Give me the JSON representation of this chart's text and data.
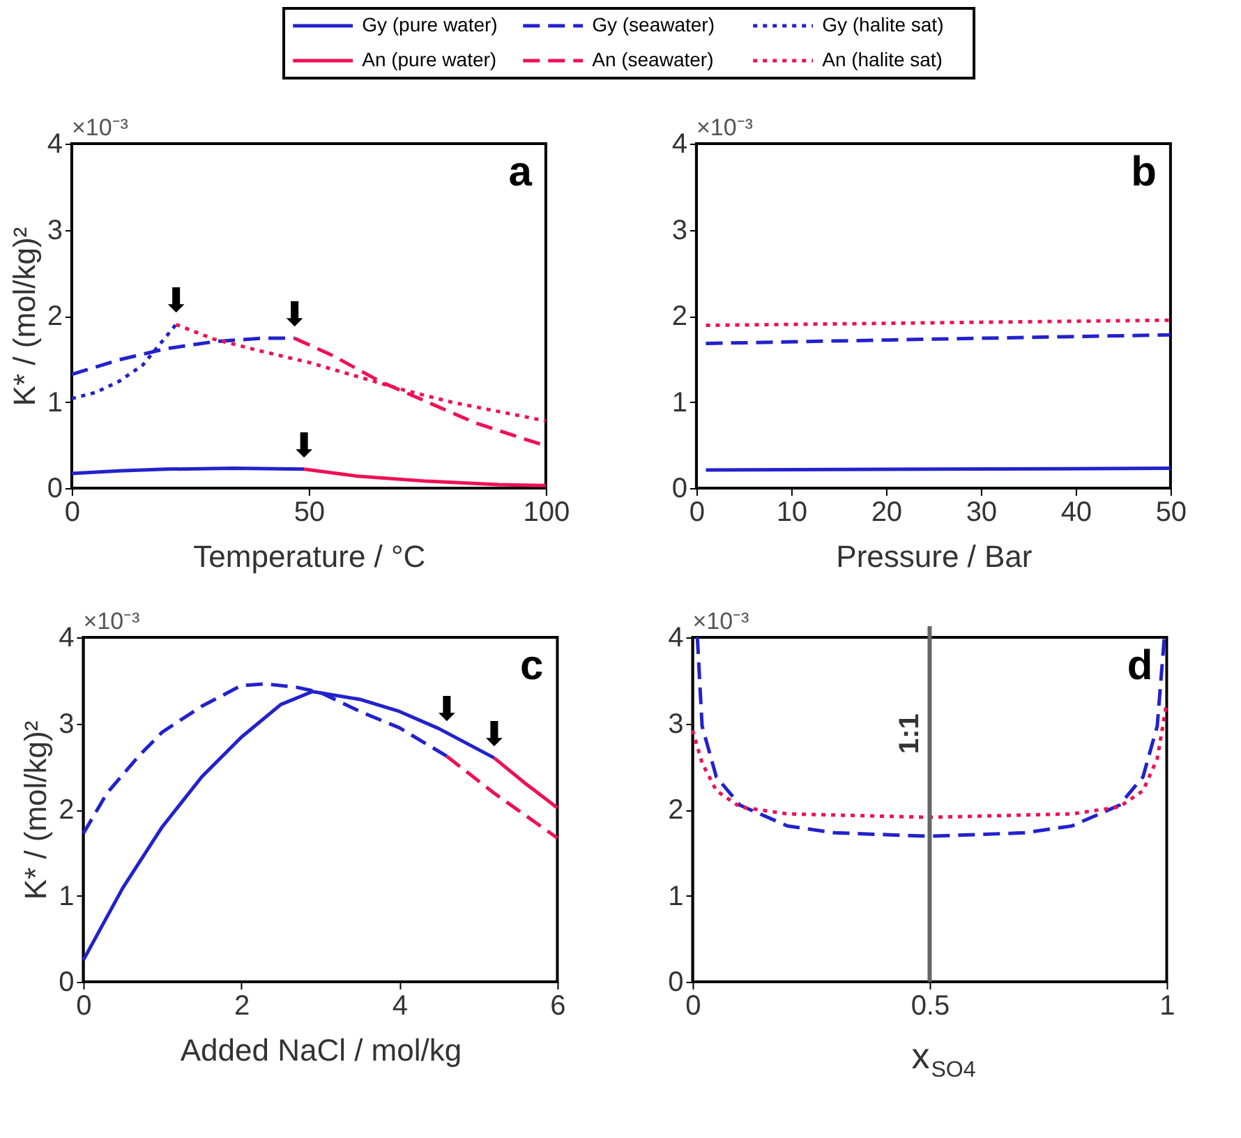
{
  "chart_data": [
    {
      "type": "line",
      "xlabel": "Temperature / °C",
      "ylabel": "K* / (mol/kg)²",
      "xlim": [
        0,
        100
      ],
      "ylim": [
        0,
        4
      ],
      "xticks": [
        0,
        50,
        100
      ],
      "yticks": [
        0,
        1,
        2,
        3,
        4
      ],
      "legend": "top",
      "annotations": [
        "×10⁻³",
        "a",
        {
          "text": "⬇",
          "x": 22,
          "y": 1.9
        },
        {
          "text": "⬇",
          "x": 47,
          "y": 1.74
        },
        {
          "text": "⬇",
          "x": 49,
          "y": 0.22
        }
      ],
      "series": [
        {
          "name": "Gy (pure water)",
          "color": "#2222cc",
          "line_style": "solid",
          "x": [
            0,
            10,
            20,
            34,
            49
          ],
          "values": [
            0.17,
            0.2,
            0.22,
            0.23,
            0.22
          ]
        },
        {
          "name": "An (pure water)",
          "color": "#ee1155",
          "line_style": "solid",
          "x": [
            49,
            60,
            75,
            90,
            100
          ],
          "values": [
            0.22,
            0.14,
            0.08,
            0.04,
            0.03
          ]
        },
        {
          "name": "Gy (seawater)",
          "color": "#2222cc",
          "line_style": "dashed",
          "x": [
            0,
            10,
            20,
            30,
            40,
            47
          ],
          "values": [
            1.32,
            1.49,
            1.62,
            1.7,
            1.74,
            1.74
          ]
        },
        {
          "name": "An (seawater)",
          "color": "#ee1155",
          "line_style": "dashed",
          "x": [
            47,
            55,
            65,
            75,
            85,
            100
          ],
          "values": [
            1.74,
            1.54,
            1.24,
            1.0,
            0.76,
            0.49
          ]
        },
        {
          "name": "Gy (halite sat)",
          "color": "#2222cc",
          "line_style": "dotted",
          "x": [
            0,
            5,
            10,
            15,
            22
          ],
          "values": [
            1.04,
            1.11,
            1.24,
            1.43,
            1.9
          ]
        },
        {
          "name": "An (halite sat)",
          "color": "#ee1155",
          "line_style": "dotted",
          "x": [
            22,
            30,
            40,
            50,
            60,
            70,
            80,
            90,
            100
          ],
          "values": [
            1.9,
            1.73,
            1.59,
            1.46,
            1.3,
            1.14,
            1.0,
            0.89,
            0.78
          ]
        }
      ]
    },
    {
      "type": "line",
      "xlabel": "Pressure / Bar",
      "xlim": [
        0,
        50
      ],
      "ylim": [
        0,
        4
      ],
      "xticks": [
        0,
        10,
        20,
        30,
        40,
        50
      ],
      "yticks": [
        0,
        1,
        2,
        3,
        4
      ],
      "annotations": [
        "×10⁻³",
        "b"
      ],
      "series": [
        {
          "color": "#2222cc",
          "line_style": "solid",
          "x": [
            1,
            25,
            50
          ],
          "values": [
            0.21,
            0.22,
            0.23
          ]
        },
        {
          "color": "#2222cc",
          "line_style": "dashed",
          "x": [
            1,
            25,
            50
          ],
          "values": [
            1.68,
            1.73,
            1.78
          ]
        },
        {
          "color": "#ee1155",
          "line_style": "dotted",
          "x": [
            1,
            25,
            50
          ],
          "values": [
            1.89,
            1.92,
            1.95
          ]
        }
      ]
    },
    {
      "type": "line",
      "xlabel": "Added NaCl / mol/kg",
      "ylabel": "K* / (mol/kg)²",
      "xlim": [
        0,
        6
      ],
      "ylim": [
        0,
        4
      ],
      "xticks": [
        0,
        2,
        4,
        6
      ],
      "yticks": [
        0,
        1,
        2,
        3,
        4
      ],
      "annotations": [
        "×10⁻³",
        "c",
        {
          "text": "⬇",
          "x": 4.6,
          "y": 2.89
        },
        {
          "text": "⬇",
          "x": 5.2,
          "y": 2.6
        }
      ],
      "series": [
        {
          "color": "#2222cc",
          "line_style": "solid",
          "x": [
            0,
            0.5,
            1,
            1.5,
            2,
            2.5,
            2.9,
            3.5,
            4,
            4.5,
            5.2
          ],
          "values": [
            0.25,
            1.09,
            1.8,
            2.38,
            2.84,
            3.22,
            3.37,
            3.28,
            3.14,
            2.94,
            2.6
          ]
        },
        {
          "color": "#ee1155",
          "line_style": "solid",
          "x": [
            5.2,
            5.6,
            6
          ],
          "values": [
            2.6,
            2.3,
            2.02
          ]
        },
        {
          "color": "#2222cc",
          "line_style": "dashed",
          "x": [
            0,
            0.3,
            0.7,
            1,
            1.5,
            2,
            2.3,
            2.7,
            3,
            3.5,
            4,
            4.6
          ],
          "values": [
            1.72,
            2.19,
            2.62,
            2.9,
            3.2,
            3.44,
            3.46,
            3.42,
            3.36,
            3.14,
            2.95,
            2.62
          ]
        },
        {
          "color": "#ee1155",
          "line_style": "dashed",
          "x": [
            4.6,
            5.2,
            6
          ],
          "values": [
            2.62,
            2.19,
            1.67
          ]
        }
      ]
    },
    {
      "type": "line",
      "xlabel": "x$_{SO4}$",
      "xlim": [
        0,
        1
      ],
      "ylim": [
        0,
        4
      ],
      "xticks": [
        0,
        0.5,
        1
      ],
      "yticks": [
        0,
        1,
        2,
        3,
        4
      ],
      "annotations": [
        "×10⁻³",
        "d"
      ],
      "ref_lines": [
        {
          "axis": "x",
          "value": 0.5,
          "label": "1:1",
          "color": "#666666"
        }
      ],
      "series": [
        {
          "color": "#2222cc",
          "line_style": "dashed",
          "x": [
            0.01,
            0.02,
            0.05,
            0.1,
            0.2,
            0.3,
            0.5,
            0.7,
            0.8,
            0.9,
            0.95,
            0.98,
            0.995
          ],
          "values": [
            4.0,
            2.97,
            2.38,
            2.05,
            1.81,
            1.73,
            1.69,
            1.73,
            1.81,
            2.05,
            2.38,
            2.97,
            4.0
          ]
        },
        {
          "color": "#ee1155",
          "line_style": "dotted",
          "x": [
            0,
            0.02,
            0.05,
            0.1,
            0.2,
            0.5,
            0.8,
            0.9,
            0.95,
            0.98,
            1
          ],
          "values": [
            2.92,
            2.54,
            2.22,
            2.03,
            1.95,
            1.91,
            1.95,
            2.03,
            2.22,
            2.59,
            3.24
          ]
        }
      ]
    }
  ]
}
